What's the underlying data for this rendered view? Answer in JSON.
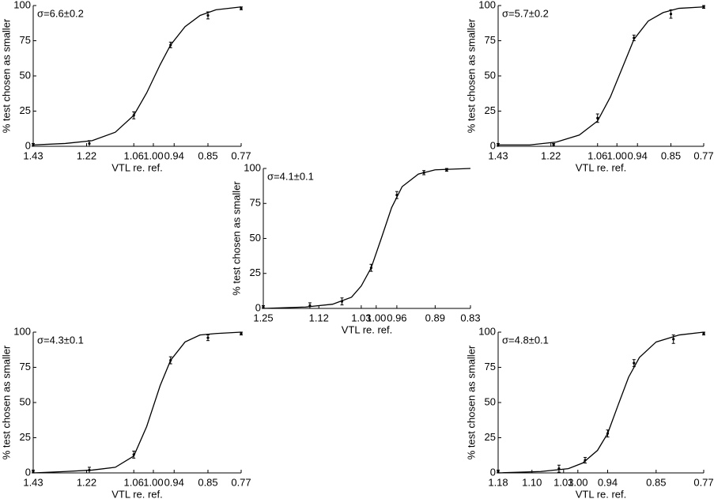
{
  "chart_data": [
    {
      "type": "scatter",
      "annotation": "σ=6.6±0.2",
      "ylabel": "% test chosen as smaller",
      "xlabel": "VTL re. ref.",
      "xscale": "log",
      "xlim": [
        1.43,
        0.77
      ],
      "ylim": [
        0,
        100
      ],
      "yticks": [
        0,
        25,
        50,
        75,
        100
      ],
      "xticks": [
        1.43,
        1.22,
        1.06,
        {
          "value": 1,
          "label": "1.00"
        },
        0.94,
        0.85,
        0.77
      ],
      "color": "#000000",
      "x": [
        1.43,
        1.21,
        1.06,
        0.95,
        0.85,
        0.77
      ],
      "values": [
        1,
        2,
        22,
        72,
        93,
        98
      ],
      "errors": [
        1,
        2,
        2.5,
        2,
        2.5,
        1
      ],
      "fit": {
        "x": [
          1.43,
          1.3,
          1.2,
          1.12,
          1.06,
          1.02,
          0.98,
          0.95,
          0.91,
          0.87,
          0.83,
          0.77
        ],
        "values": [
          1,
          2,
          4,
          10,
          22,
          38,
          58,
          72,
          85,
          93,
          97,
          99
        ]
      }
    },
    {
      "type": "scatter",
      "annotation": "σ=5.7±0.2",
      "ylabel": "% test chosen as smaller",
      "xlabel": "VTL re. ref.",
      "xscale": "log",
      "xlim": [
        1.43,
        0.77
      ],
      "ylim": [
        0,
        100
      ],
      "yticks": [
        0,
        25,
        50,
        75,
        100
      ],
      "xticks": [
        1.43,
        1.22,
        1.06,
        {
          "value": 1,
          "label": "1.00"
        },
        0.94,
        0.85,
        0.77
      ],
      "color": "#000000",
      "x": [
        1.43,
        1.21,
        1.06,
        0.95,
        0.85,
        0.77
      ],
      "values": [
        1,
        1,
        20,
        77,
        94,
        99
      ],
      "errors": [
        1,
        1,
        3,
        2,
        3,
        1
      ],
      "fit": {
        "x": [
          1.43,
          1.3,
          1.2,
          1.12,
          1.06,
          1.02,
          0.98,
          0.95,
          0.91,
          0.87,
          0.83,
          0.77
        ],
        "values": [
          1,
          1,
          3,
          8,
          18,
          35,
          58,
          76,
          89,
          95,
          98,
          99
        ]
      }
    },
    {
      "type": "scatter",
      "annotation": "σ=4.1±0.1",
      "ylabel": "% test chosen as smaller",
      "xlabel": "VTL re. ref.",
      "xscale": "log",
      "xlim": [
        1.25,
        0.83
      ],
      "ylim": [
        0,
        100
      ],
      "yticks": [
        0,
        25,
        50,
        75,
        100
      ],
      "xticks": [
        1.25,
        1.12,
        1.03,
        {
          "value": 1,
          "label": "1.00"
        },
        0.96,
        0.89,
        0.83
      ],
      "color": "#000000",
      "x": [
        1.25,
        1.14,
        1.07,
        1.01,
        0.96,
        0.91,
        0.87
      ],
      "values": [
        1,
        2,
        5,
        29,
        81,
        97,
        99
      ],
      "errors": [
        1,
        2,
        2.5,
        2.5,
        2.5,
        1.5,
        1
      ],
      "fit": {
        "x": [
          1.25,
          1.15,
          1.09,
          1.05,
          1.03,
          1.01,
          0.99,
          0.97,
          0.95,
          0.92,
          0.89,
          0.83
        ],
        "values": [
          0,
          1,
          3,
          8,
          16,
          29,
          50,
          72,
          87,
          96,
          99,
          100
        ]
      }
    },
    {
      "type": "scatter",
      "annotation": "σ=4.3±0.1",
      "ylabel": "% test chosen as smaller",
      "xlabel": "VTL re. ref.",
      "xscale": "log",
      "xlim": [
        1.43,
        0.77
      ],
      "ylim": [
        0,
        100
      ],
      "yticks": [
        0,
        25,
        50,
        75,
        100
      ],
      "xticks": [
        1.43,
        1.22,
        1.06,
        {
          "value": 1,
          "label": "1.00"
        },
        0.94,
        0.85,
        0.77
      ],
      "color": "#000000",
      "x": [
        1.43,
        1.21,
        1.06,
        0.95,
        0.85,
        0.77
      ],
      "values": [
        1,
        2,
        13,
        80,
        96,
        99
      ],
      "errors": [
        1,
        2,
        2.5,
        2.5,
        2,
        1
      ],
      "fit": {
        "x": [
          1.43,
          1.3,
          1.2,
          1.12,
          1.06,
          1.02,
          0.98,
          0.95,
          0.91,
          0.87,
          0.83,
          0.77
        ],
        "values": [
          0,
          1,
          2,
          4,
          12,
          33,
          62,
          80,
          93,
          98,
          99,
          100
        ]
      }
    },
    {
      "type": "scatter",
      "annotation": "σ=4.8±0.1",
      "ylabel": "% test chosen as smaller",
      "xlabel": "VTL re. ref.",
      "xscale": "log",
      "xlim": [
        1.18,
        0.77
      ],
      "ylim": [
        0,
        100
      ],
      "yticks": [
        0,
        25,
        50,
        75,
        100
      ],
      "xticks": [
        1.18,
        {
          "value": 1.1,
          "label": "1.10"
        },
        1.03,
        {
          "value": 1,
          "label": "1.00"
        },
        0.94,
        0.85,
        0.77
      ],
      "color": "#000000",
      "x": [
        1.18,
        1.04,
        0.985,
        0.94,
        0.89,
        0.82,
        0.77
      ],
      "values": [
        1,
        3,
        9,
        28,
        78,
        95,
        99
      ],
      "errors": [
        1,
        2.5,
        2,
        2.5,
        2.5,
        3,
        1
      ],
      "fit": {
        "x": [
          1.18,
          1.08,
          1.02,
          0.99,
          0.96,
          0.94,
          0.92,
          0.9,
          0.88,
          0.85,
          0.81,
          0.77
        ],
        "values": [
          0,
          1,
          3,
          7,
          16,
          28,
          48,
          68,
          82,
          93,
          98,
          100
        ]
      }
    }
  ]
}
